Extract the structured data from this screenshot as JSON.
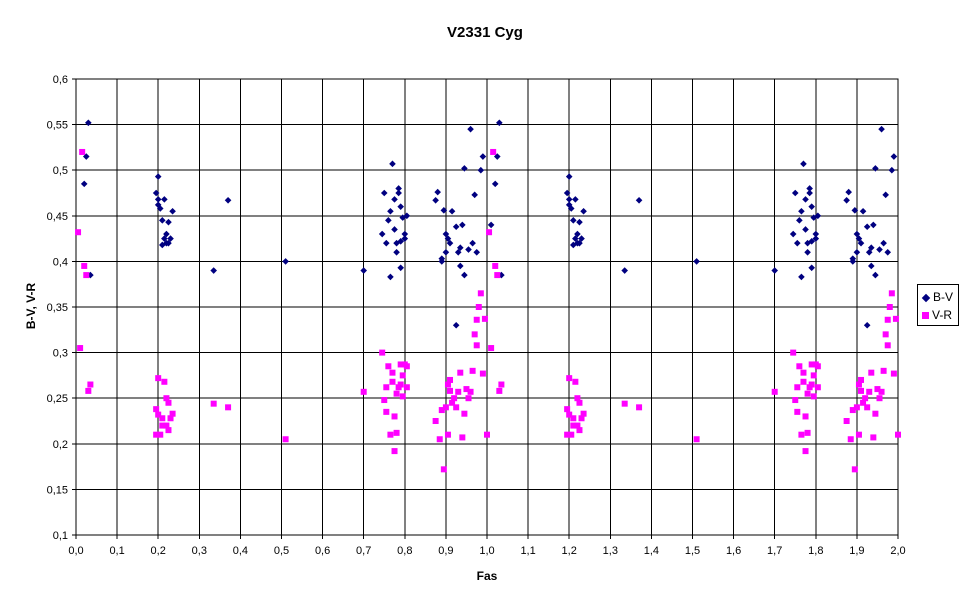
{
  "chart_data": {
    "type": "scatter",
    "title": "V2331 Cyg",
    "xlabel": "Fas",
    "ylabel": "B-V, V-R",
    "xlim": [
      0,
      2
    ],
    "ylim": [
      0.1,
      0.6
    ],
    "x_ticks": [
      "0,0",
      "0,1",
      "0,2",
      "0,3",
      "0,4",
      "0,5",
      "0,6",
      "0,7",
      "0,8",
      "0,9",
      "1,0",
      "1,1",
      "1,2",
      "1,3",
      "1,4",
      "1,5",
      "1,6",
      "1,7",
      "1,8",
      "1,9",
      "2,0"
    ],
    "y_ticks": [
      "0,1",
      "0,15",
      "0,2",
      "0,25",
      "0,3",
      "0,35",
      "0,4",
      "0,45",
      "0,5",
      "0,55",
      "0,6"
    ],
    "grid": true,
    "legend_position": "right",
    "series": [
      {
        "name": "B-V",
        "color": "#000080",
        "marker": "diamond",
        "points": [
          [
            0.02,
            0.485
          ],
          [
            0.025,
            0.515
          ],
          [
            0.03,
            0.552
          ],
          [
            0.035,
            0.385
          ],
          [
            0.195,
            0.475
          ],
          [
            0.2,
            0.462
          ],
          [
            0.2,
            0.468
          ],
          [
            0.2,
            0.493
          ],
          [
            0.205,
            0.458
          ],
          [
            0.21,
            0.418
          ],
          [
            0.21,
            0.445
          ],
          [
            0.215,
            0.425
          ],
          [
            0.215,
            0.468
          ],
          [
            0.22,
            0.42
          ],
          [
            0.22,
            0.43
          ],
          [
            0.225,
            0.443
          ],
          [
            0.225,
            0.42
          ],
          [
            0.23,
            0.425
          ],
          [
            0.235,
            0.455
          ],
          [
            0.335,
            0.39
          ],
          [
            0.37,
            0.467
          ],
          [
            0.51,
            0.4
          ],
          [
            0.7,
            0.39
          ],
          [
            0.745,
            0.43
          ],
          [
            0.75,
            0.475
          ],
          [
            0.755,
            0.42
          ],
          [
            0.76,
            0.445
          ],
          [
            0.765,
            0.383
          ],
          [
            0.765,
            0.455
          ],
          [
            0.77,
            0.507
          ],
          [
            0.775,
            0.435
          ],
          [
            0.775,
            0.468
          ],
          [
            0.78,
            0.41
          ],
          [
            0.78,
            0.42
          ],
          [
            0.785,
            0.475
          ],
          [
            0.785,
            0.48
          ],
          [
            0.79,
            0.422
          ],
          [
            0.79,
            0.46
          ],
          [
            0.79,
            0.393
          ],
          [
            0.795,
            0.448
          ],
          [
            0.8,
            0.43
          ],
          [
            0.8,
            0.425
          ],
          [
            0.805,
            0.45
          ],
          [
            0.875,
            0.467
          ],
          [
            0.88,
            0.476
          ],
          [
            0.89,
            0.403
          ],
          [
            0.89,
            0.4
          ],
          [
            0.895,
            0.456
          ],
          [
            0.9,
            0.43
          ],
          [
            0.9,
            0.41
          ],
          [
            0.905,
            0.425
          ],
          [
            0.91,
            0.42
          ],
          [
            0.915,
            0.455
          ],
          [
            0.925,
            0.33
          ],
          [
            0.925,
            0.438
          ],
          [
            0.93,
            0.41
          ],
          [
            0.935,
            0.395
          ],
          [
            0.935,
            0.415
          ],
          [
            0.94,
            0.44
          ],
          [
            0.945,
            0.385
          ],
          [
            0.945,
            0.502
          ],
          [
            0.955,
            0.413
          ],
          [
            0.96,
            0.545
          ],
          [
            0.965,
            0.42
          ],
          [
            0.97,
            0.473
          ],
          [
            0.975,
            0.41
          ],
          [
            0.985,
            0.5
          ],
          [
            0.99,
            0.515
          ],
          [
            1.01,
            0.44
          ],
          [
            1.02,
            0.485
          ],
          [
            1.025,
            0.515
          ],
          [
            1.03,
            0.552
          ],
          [
            1.035,
            0.385
          ],
          [
            1.195,
            0.475
          ],
          [
            1.2,
            0.462
          ],
          [
            1.2,
            0.468
          ],
          [
            1.2,
            0.493
          ],
          [
            1.205,
            0.458
          ],
          [
            1.21,
            0.418
          ],
          [
            1.21,
            0.445
          ],
          [
            1.215,
            0.425
          ],
          [
            1.215,
            0.468
          ],
          [
            1.22,
            0.42
          ],
          [
            1.22,
            0.43
          ],
          [
            1.225,
            0.443
          ],
          [
            1.225,
            0.42
          ],
          [
            1.23,
            0.425
          ],
          [
            1.235,
            0.455
          ],
          [
            1.335,
            0.39
          ],
          [
            1.37,
            0.467
          ],
          [
            1.51,
            0.4
          ],
          [
            1.7,
            0.39
          ],
          [
            1.745,
            0.43
          ],
          [
            1.75,
            0.475
          ],
          [
            1.755,
            0.42
          ],
          [
            1.76,
            0.445
          ],
          [
            1.765,
            0.383
          ],
          [
            1.765,
            0.455
          ],
          [
            1.77,
            0.507
          ],
          [
            1.775,
            0.435
          ],
          [
            1.775,
            0.468
          ],
          [
            1.78,
            0.41
          ],
          [
            1.78,
            0.42
          ],
          [
            1.785,
            0.475
          ],
          [
            1.785,
            0.48
          ],
          [
            1.79,
            0.422
          ],
          [
            1.79,
            0.46
          ],
          [
            1.79,
            0.393
          ],
          [
            1.795,
            0.448
          ],
          [
            1.8,
            0.43
          ],
          [
            1.8,
            0.425
          ],
          [
            1.805,
            0.45
          ],
          [
            1.875,
            0.467
          ],
          [
            1.88,
            0.476
          ],
          [
            1.89,
            0.403
          ],
          [
            1.89,
            0.4
          ],
          [
            1.895,
            0.456
          ],
          [
            1.9,
            0.43
          ],
          [
            1.9,
            0.41
          ],
          [
            1.905,
            0.425
          ],
          [
            1.91,
            0.42
          ],
          [
            1.915,
            0.455
          ],
          [
            1.925,
            0.33
          ],
          [
            1.925,
            0.438
          ],
          [
            1.93,
            0.41
          ],
          [
            1.935,
            0.395
          ],
          [
            1.935,
            0.415
          ],
          [
            1.94,
            0.44
          ],
          [
            1.945,
            0.385
          ],
          [
            1.945,
            0.502
          ],
          [
            1.955,
            0.413
          ],
          [
            1.96,
            0.545
          ],
          [
            1.965,
            0.42
          ],
          [
            1.97,
            0.473
          ],
          [
            1.975,
            0.41
          ],
          [
            1.985,
            0.5
          ],
          [
            1.99,
            0.515
          ]
        ]
      },
      {
        "name": "V-R",
        "color": "#ff00ff",
        "marker": "square",
        "points": [
          [
            0.005,
            0.432
          ],
          [
            0.01,
            0.305
          ],
          [
            0.015,
            0.52
          ],
          [
            0.02,
            0.395
          ],
          [
            0.025,
            0.385
          ],
          [
            0.03,
            0.258
          ],
          [
            0.035,
            0.265
          ],
          [
            0.195,
            0.21
          ],
          [
            0.195,
            0.238
          ],
          [
            0.2,
            0.232
          ],
          [
            0.2,
            0.272
          ],
          [
            0.205,
            0.21
          ],
          [
            0.21,
            0.22
          ],
          [
            0.21,
            0.228
          ],
          [
            0.215,
            0.268
          ],
          [
            0.22,
            0.22
          ],
          [
            0.22,
            0.25
          ],
          [
            0.225,
            0.245
          ],
          [
            0.225,
            0.215
          ],
          [
            0.23,
            0.228
          ],
          [
            0.235,
            0.233
          ],
          [
            0.335,
            0.244
          ],
          [
            0.37,
            0.24
          ],
          [
            0.51,
            0.205
          ],
          [
            0.7,
            0.257
          ],
          [
            0.745,
            0.3
          ],
          [
            0.75,
            0.248
          ],
          [
            0.755,
            0.262
          ],
          [
            0.755,
            0.235
          ],
          [
            0.76,
            0.285
          ],
          [
            0.765,
            0.21
          ],
          [
            0.77,
            0.268
          ],
          [
            0.77,
            0.278
          ],
          [
            0.775,
            0.192
          ],
          [
            0.775,
            0.23
          ],
          [
            0.78,
            0.212
          ],
          [
            0.78,
            0.255
          ],
          [
            0.785,
            0.262
          ],
          [
            0.79,
            0.287
          ],
          [
            0.79,
            0.265
          ],
          [
            0.795,
            0.275
          ],
          [
            0.795,
            0.252
          ],
          [
            0.8,
            0.287
          ],
          [
            0.805,
            0.285
          ],
          [
            0.805,
            0.262
          ],
          [
            0.875,
            0.225
          ],
          [
            0.885,
            0.205
          ],
          [
            0.89,
            0.237
          ],
          [
            0.895,
            0.172
          ],
          [
            0.9,
            0.24
          ],
          [
            0.905,
            0.265
          ],
          [
            0.905,
            0.21
          ],
          [
            0.91,
            0.258
          ],
          [
            0.91,
            0.27
          ],
          [
            0.915,
            0.245
          ],
          [
            0.92,
            0.25
          ],
          [
            0.925,
            0.24
          ],
          [
            0.93,
            0.257
          ],
          [
            0.935,
            0.278
          ],
          [
            0.94,
            0.207
          ],
          [
            0.945,
            0.233
          ],
          [
            0.95,
            0.26
          ],
          [
            0.955,
            0.25
          ],
          [
            0.96,
            0.257
          ],
          [
            0.965,
            0.28
          ],
          [
            0.97,
            0.32
          ],
          [
            0.975,
            0.308
          ],
          [
            0.975,
            0.336
          ],
          [
            0.98,
            0.35
          ],
          [
            0.985,
            0.365
          ],
          [
            0.99,
            0.277
          ],
          [
            0.995,
            0.337
          ],
          [
            1.0,
            0.21
          ],
          [
            1.005,
            0.432
          ],
          [
            1.01,
            0.305
          ],
          [
            1.015,
            0.52
          ],
          [
            1.02,
            0.395
          ],
          [
            1.025,
            0.385
          ],
          [
            1.03,
            0.258
          ],
          [
            1.035,
            0.265
          ],
          [
            1.195,
            0.21
          ],
          [
            1.195,
            0.238
          ],
          [
            1.2,
            0.232
          ],
          [
            1.2,
            0.272
          ],
          [
            1.205,
            0.21
          ],
          [
            1.21,
            0.22
          ],
          [
            1.21,
            0.228
          ],
          [
            1.215,
            0.268
          ],
          [
            1.22,
            0.22
          ],
          [
            1.22,
            0.25
          ],
          [
            1.225,
            0.245
          ],
          [
            1.225,
            0.215
          ],
          [
            1.23,
            0.228
          ],
          [
            1.235,
            0.233
          ],
          [
            1.335,
            0.244
          ],
          [
            1.37,
            0.24
          ],
          [
            1.51,
            0.205
          ],
          [
            1.7,
            0.257
          ],
          [
            1.745,
            0.3
          ],
          [
            1.75,
            0.248
          ],
          [
            1.755,
            0.262
          ],
          [
            1.755,
            0.235
          ],
          [
            1.76,
            0.285
          ],
          [
            1.765,
            0.21
          ],
          [
            1.77,
            0.268
          ],
          [
            1.77,
            0.278
          ],
          [
            1.775,
            0.192
          ],
          [
            1.775,
            0.23
          ],
          [
            1.78,
            0.212
          ],
          [
            1.78,
            0.255
          ],
          [
            1.785,
            0.262
          ],
          [
            1.79,
            0.287
          ],
          [
            1.79,
            0.265
          ],
          [
            1.795,
            0.275
          ],
          [
            1.795,
            0.252
          ],
          [
            1.8,
            0.287
          ],
          [
            1.805,
            0.285
          ],
          [
            1.805,
            0.262
          ],
          [
            1.875,
            0.225
          ],
          [
            1.885,
            0.205
          ],
          [
            1.89,
            0.237
          ],
          [
            1.895,
            0.172
          ],
          [
            1.9,
            0.24
          ],
          [
            1.905,
            0.265
          ],
          [
            1.905,
            0.21
          ],
          [
            1.91,
            0.258
          ],
          [
            1.91,
            0.27
          ],
          [
            1.915,
            0.245
          ],
          [
            1.92,
            0.25
          ],
          [
            1.925,
            0.24
          ],
          [
            1.93,
            0.257
          ],
          [
            1.935,
            0.278
          ],
          [
            1.94,
            0.207
          ],
          [
            1.945,
            0.233
          ],
          [
            1.95,
            0.26
          ],
          [
            1.955,
            0.25
          ],
          [
            1.96,
            0.257
          ],
          [
            1.965,
            0.28
          ],
          [
            1.97,
            0.32
          ],
          [
            1.975,
            0.308
          ],
          [
            1.975,
            0.336
          ],
          [
            1.98,
            0.35
          ],
          [
            1.985,
            0.365
          ],
          [
            1.99,
            0.277
          ],
          [
            1.995,
            0.337
          ],
          [
            2.0,
            0.21
          ]
        ]
      }
    ]
  }
}
